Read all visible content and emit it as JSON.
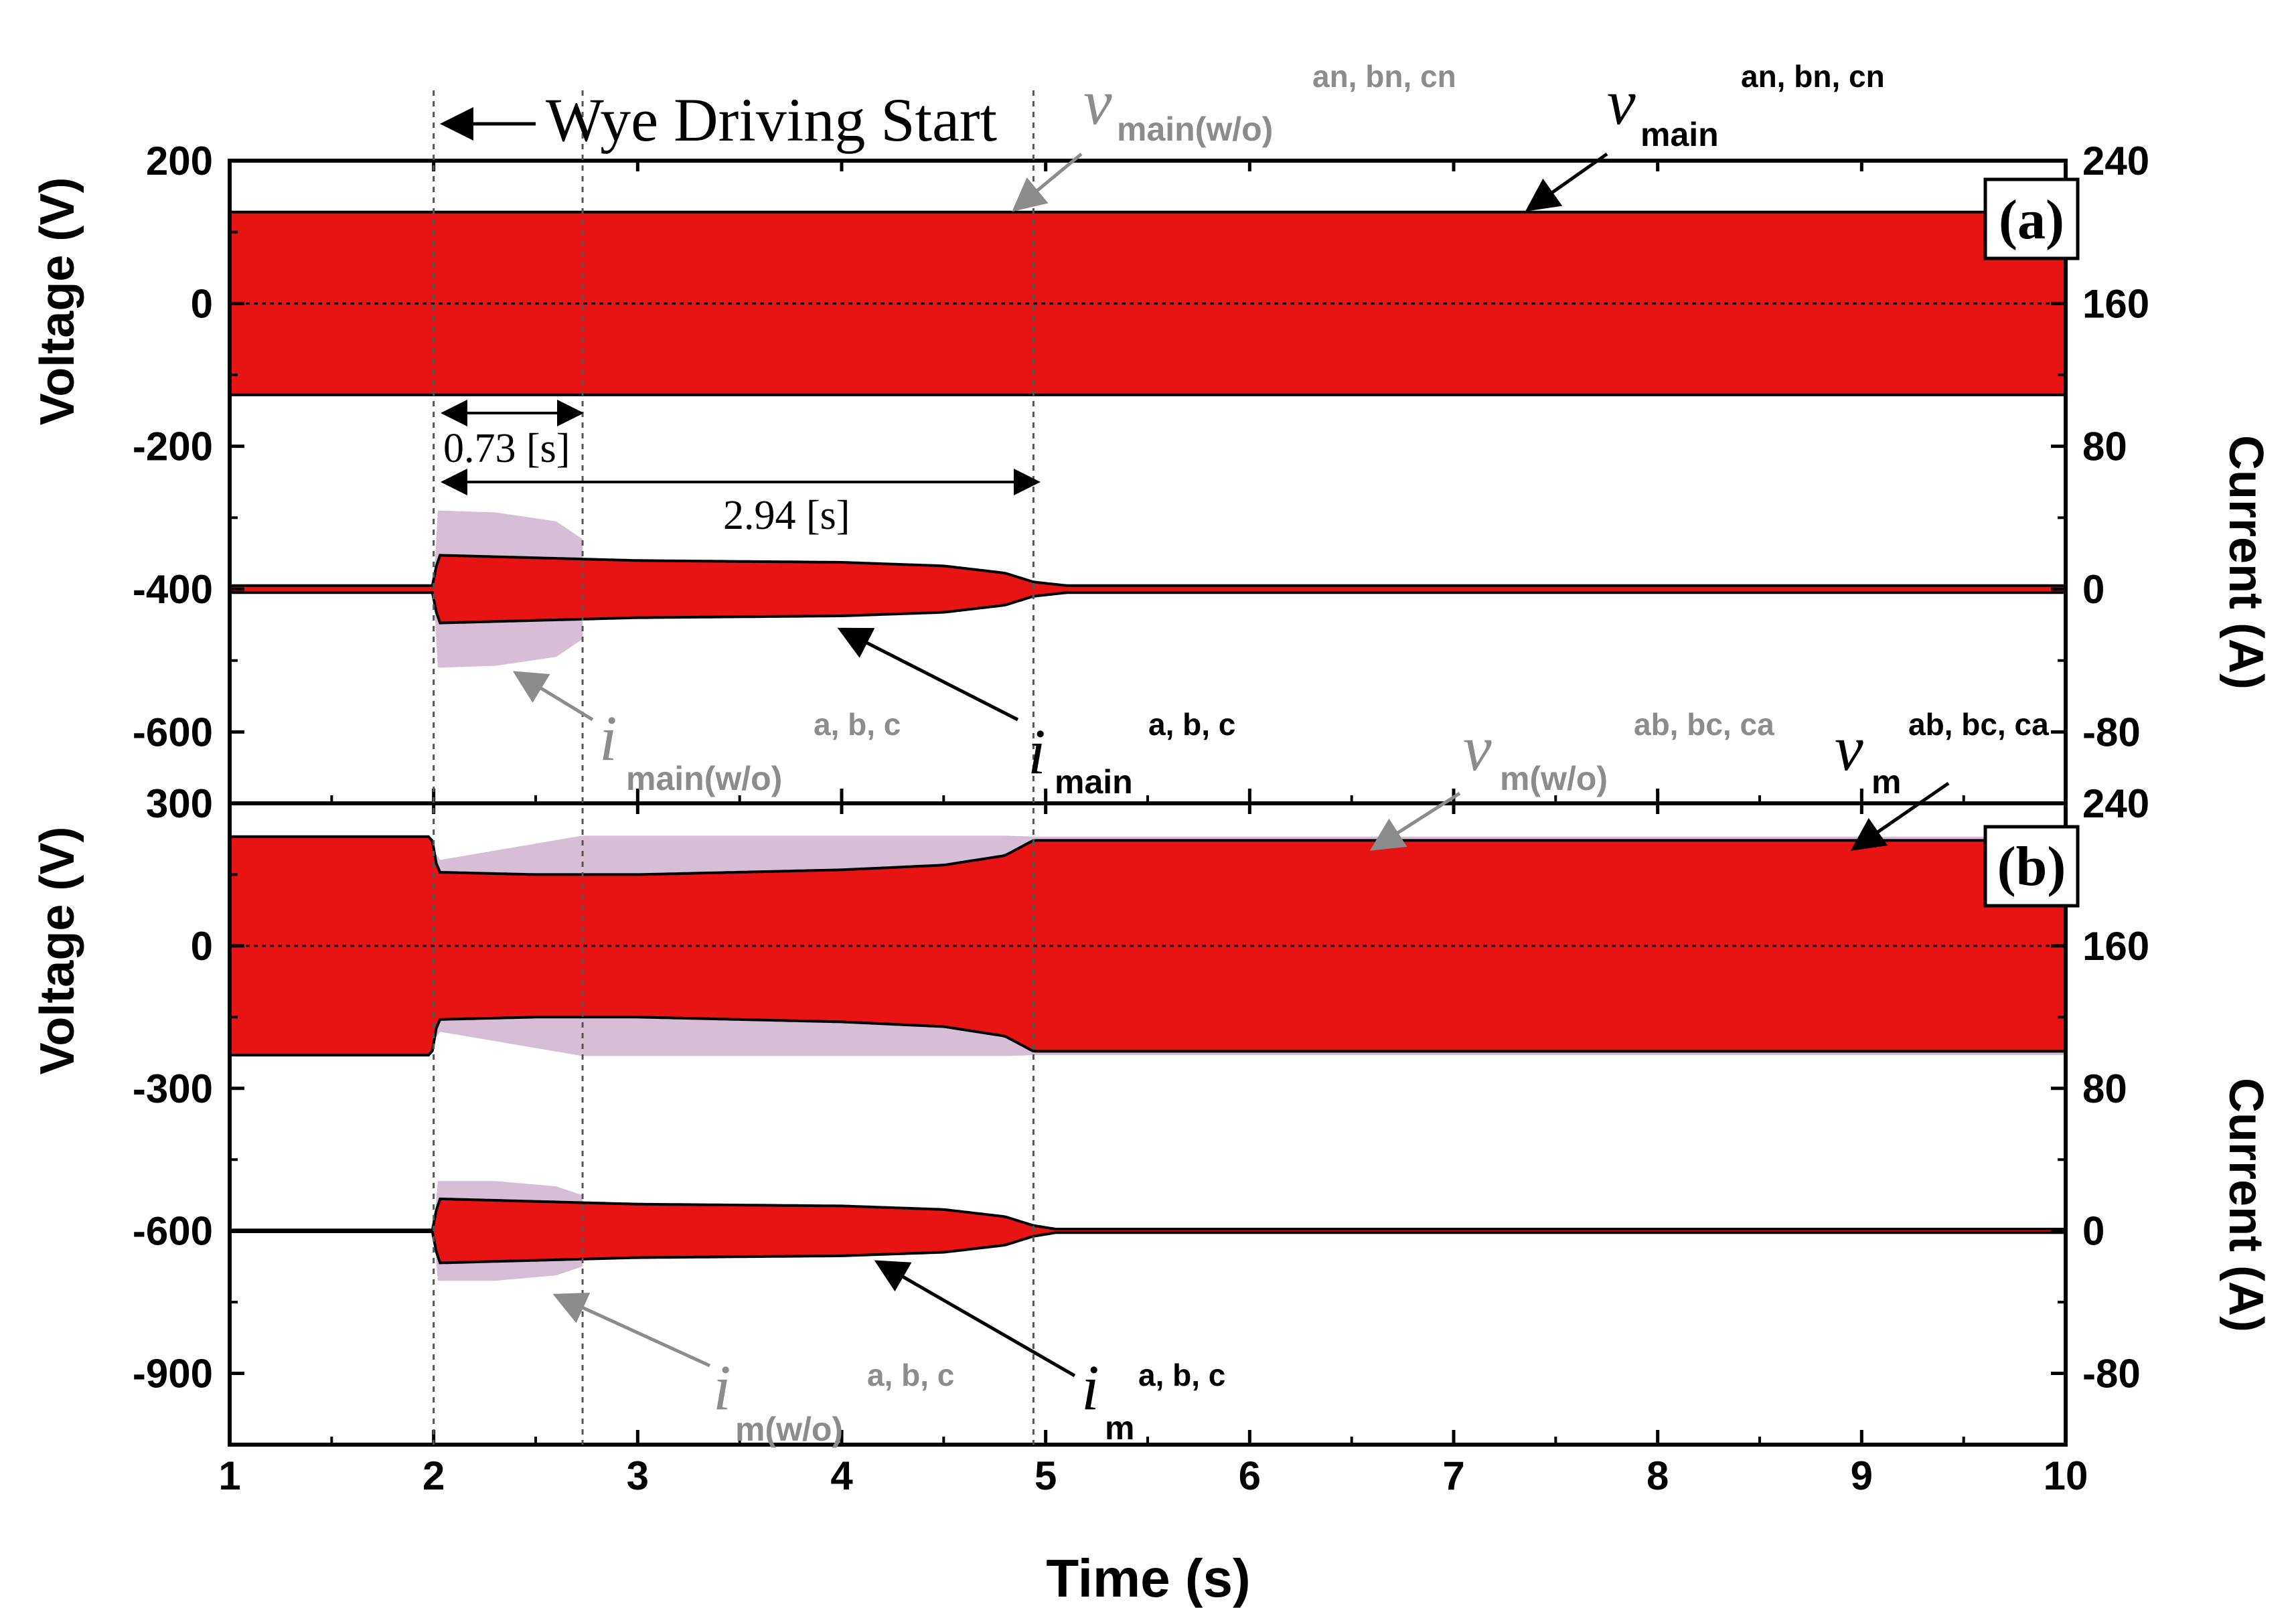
{
  "chart_data": [
    {
      "panel": "(a)",
      "type": "line",
      "xlabel": "",
      "ylabel": "Voltage (V)",
      "y2label": "Current (A)",
      "xlim": [
        1,
        10
      ],
      "ylim": [
        -700,
        200
      ],
      "y2lim": [
        -120,
        240
      ],
      "yticks": [
        200,
        0,
        -200,
        -400,
        -600
      ],
      "y2ticks": [
        240,
        160,
        80,
        0,
        -80
      ],
      "grid": false,
      "series": [
        {
          "name": "v_main(w/o)",
          "axis": "left",
          "color": "#1f2bd1",
          "envelope": {
            "x": [
              1,
              10
            ],
            "upper": [
              128,
              128
            ],
            "lower": [
              -128,
              -128
            ]
          }
        },
        {
          "name": "v_main",
          "axis": "left",
          "color": "#e81313",
          "envelope": {
            "x": [
              1,
              10
            ],
            "upper": [
              128,
              128
            ],
            "lower": [
              -128,
              -128
            ]
          }
        },
        {
          "name": "i_main(w/o)",
          "axis": "right",
          "color": "#c8a8c8",
          "envelope": {
            "x": [
              1,
              2,
              2.02,
              2.3,
              2.6,
              2.73
            ],
            "upper": [
              2,
              2,
              44,
              43,
              38,
              28
            ],
            "lower": [
              -2,
              -2,
              -44,
              -43,
              -38,
              -28
            ]
          }
        },
        {
          "name": "i_main",
          "axis": "right",
          "color": "#e81313",
          "envelope": {
            "x": [
              1,
              2,
              2.02,
              3,
              4,
              4.5,
              4.8,
              4.94,
              5.1,
              10
            ],
            "upper": [
              2,
              2,
              19,
              16,
              15,
              13,
              9,
              4,
              2,
              2
            ],
            "lower": [
              -2,
              -2,
              -19,
              -16,
              -15,
              -13,
              -9,
              -4,
              -2,
              -2
            ]
          }
        }
      ],
      "annotations": {
        "start": "Wye Driving Start",
        "dur1": "0.73 [s]",
        "dur2": "2.94 [s]",
        "vmain_wo_sym": "v",
        "vmain_wo_sub": "main(w/o)",
        "vmain_wo_sup": "an, bn, cn",
        "vmain_sym": "v",
        "vmain_sub": "main",
        "vmain_sup": "an, bn, cn",
        "imain_wo_sym": "i",
        "imain_wo_sub": "main(w/o)",
        "imain_wo_sup": "a, b, c",
        "imain_sym": "i",
        "imain_sub": "main",
        "imain_sup": "a, b, c"
      }
    },
    {
      "panel": "(b)",
      "type": "line",
      "xlabel": "Time (s)",
      "ylabel": "Voltage (V)",
      "y2label": "Current (A)",
      "xlim": [
        1,
        10
      ],
      "xticks": [
        1,
        2,
        3,
        4,
        5,
        6,
        7,
        8,
        9,
        10
      ],
      "ylim": [
        -1050,
        300
      ],
      "y2lim": [
        -120,
        240
      ],
      "yticks": [
        300,
        0,
        -300,
        -600,
        -900
      ],
      "y2ticks": [
        240,
        160,
        80,
        0,
        -80
      ],
      "grid": false,
      "series": [
        {
          "name": "v_m(w/o)",
          "axis": "left",
          "color": "#c8a8c8",
          "envelope": {
            "x": [
              1,
              1.99,
              2.02,
              2.73,
              3,
              4,
              4.5,
              4.8,
              4.94,
              10
            ],
            "upper": [
              230,
              230,
              180,
              232,
              232,
              232,
              232,
              232,
              230,
              230
            ],
            "lower": [
              -230,
              -230,
              -180,
              -232,
              -232,
              -232,
              -232,
              -232,
              -230,
              -230
            ]
          }
        },
        {
          "name": "v_m",
          "axis": "left",
          "color": "#e81313",
          "envelope": {
            "x": [
              1,
              1.99,
              2.02,
              2.5,
              3,
              4,
              4.5,
              4.8,
              4.94,
              10
            ],
            "upper": [
              230,
              230,
              155,
              150,
              150,
              160,
              170,
              190,
              222,
              222
            ],
            "lower": [
              -230,
              -230,
              -155,
              -150,
              -150,
              -160,
              -170,
              -190,
              -222,
              -222
            ]
          }
        },
        {
          "name": "i_m(w/o)",
          "axis": "right",
          "color": "#c8a8c8",
          "envelope": {
            "x": [
              1,
              2,
              2.02,
              2.3,
              2.6,
              2.73
            ],
            "upper": [
              0.5,
              0.5,
              28,
              28,
              25,
              20
            ],
            "lower": [
              -0.5,
              -0.5,
              -28,
              -28,
              -25,
              -20
            ]
          }
        },
        {
          "name": "i_m",
          "axis": "right",
          "color": "#e81313",
          "envelope": {
            "x": [
              1,
              2,
              2.02,
              3,
              4,
              4.5,
              4.8,
              4.94,
              5.05,
              10
            ],
            "upper": [
              0.5,
              0.5,
              18,
              15,
              14,
              12,
              8,
              3,
              1,
              1
            ],
            "lower": [
              -0.5,
              -0.5,
              -18,
              -15,
              -14,
              -12,
              -8,
              -3,
              -1,
              -1
            ]
          }
        }
      ],
      "annotations": {
        "vm_wo_sym": "v",
        "vm_wo_sub": "m(w/o)",
        "vm_wo_sup": "ab, bc, ca",
        "vm_sym": "v",
        "vm_sub": "m",
        "vm_sup": "ab, bc, ca",
        "im_wo_sym": "i",
        "im_wo_sub": "m(w/o)",
        "im_wo_sup": "a, b, c",
        "im_sym": "i",
        "im_sub": "m",
        "im_sup": "a, b, c"
      }
    }
  ],
  "colors": {
    "red": "#e81313",
    "blue": "#1f2bd1",
    "black": "#000000",
    "gray": "#8c8c8c",
    "pink": "#c8a8c8"
  }
}
